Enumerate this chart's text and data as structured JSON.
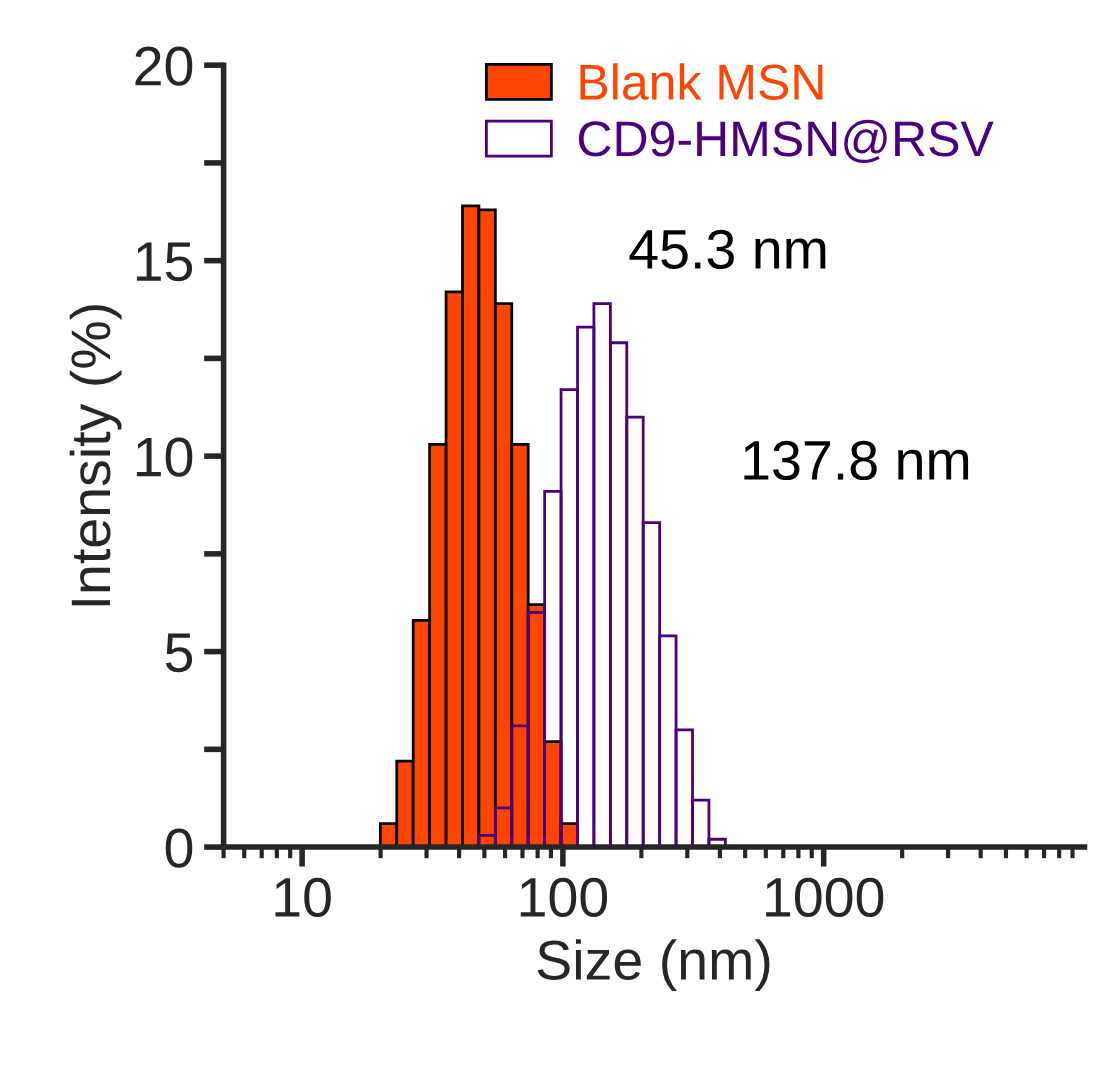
{
  "chart_data": {
    "type": "histogram",
    "xlabel": "Size (nm)",
    "ylabel": "Intensity (%)",
    "bins": [
      19.95,
      23.07,
      26.67,
      30.83,
      35.65,
      41.21,
      47.64,
      55.08,
      63.68,
      73.62,
      85.11,
      98.4,
      113.8,
      131.5,
      152.1,
      175.8,
      203.2,
      235.0,
      271.6,
      314.1,
      363.1,
      419.8
    ],
    "series": [
      {
        "name": "Blank MSN",
        "color": "#ff4500",
        "values": [
          0.6,
          2.2,
          5.8,
          10.3,
          14.2,
          16.4,
          16.3,
          13.9,
          10.3,
          6.2,
          2.7,
          0.6,
          null,
          null,
          null,
          null,
          null,
          null,
          null,
          null,
          null
        ]
      },
      {
        "name": "CD9-HMSN@RSV",
        "color": "#4b0082",
        "values": [
          null,
          null,
          null,
          null,
          null,
          null,
          0.3,
          1.0,
          3.1,
          6.0,
          9.1,
          11.7,
          13.3,
          13.9,
          12.9,
          11.0,
          8.3,
          5.4,
          3.0,
          1.2,
          0.2
        ]
      }
    ],
    "annotations": [
      "45.3 nm",
      "137.8 nm"
    ],
    "log": "x",
    "xlim": [
      5,
      10000
    ],
    "xticks": [
      10,
      100,
      1000
    ],
    "ylim": [
      0,
      20
    ],
    "yticks": [
      0,
      {
        "value": 2.5,
        "label": null
      },
      5,
      {
        "value": 7.5,
        "label": null
      },
      10,
      {
        "value": 12.5,
        "label": null
      },
      15,
      {
        "value": 17.5,
        "label": null
      },
      20
    ],
    "grid": false,
    "legend": "top"
  }
}
